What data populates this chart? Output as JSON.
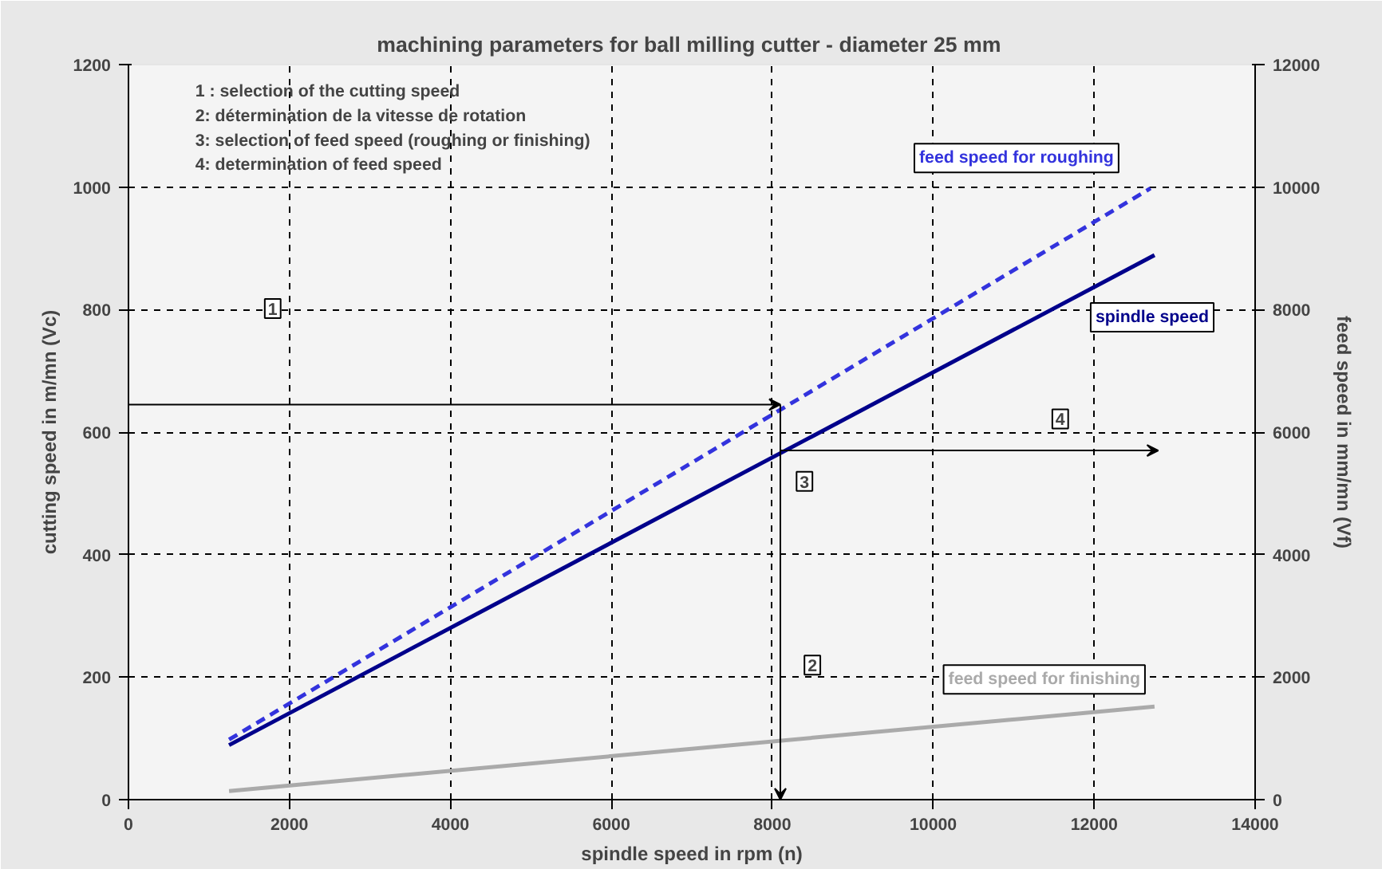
{
  "chart_data": {
    "type": "line",
    "title": "machining parameters for  ball milling cutter - diameter 25 mm",
    "xlabel": "spindle speed in rpm (n)",
    "ylabel": "cutting speed in m/mn (Vc)",
    "y2label": "feed speed in mm/mn (Vf)",
    "xlim": [
      0,
      14000
    ],
    "xticks": [
      0,
      2000,
      4000,
      6000,
      8000,
      10000,
      12000,
      14000
    ],
    "ylim": [
      0,
      1200
    ],
    "yticks": [
      0,
      200,
      400,
      600,
      800,
      1000,
      1200
    ],
    "y2lim": [
      0,
      12000
    ],
    "y2ticks": [
      0,
      2000,
      4000,
      6000,
      8000,
      10000,
      12000
    ],
    "grid": true,
    "legend": false,
    "series": [
      {
        "name": "spindle speed",
        "color": "#00008b",
        "x": [
          1250,
          12750
        ],
        "values": [
          89,
          889
        ],
        "line_style": "solid"
      },
      {
        "name": "feed speed for roughing",
        "color": "#3333dd",
        "x": [
          1250,
          12700
        ],
        "values": [
          980,
          9980
        ],
        "axis": "y2",
        "line_style": "dashed"
      },
      {
        "name": "feed speed for finishing",
        "color": "#aaaaaa",
        "x": [
          1250,
          12750
        ],
        "values": [
          140,
          1520
        ],
        "axis": "y2",
        "line_style": "solid"
      }
    ],
    "annotations": [
      "1 : selection of the cutting speed",
      "2: détermination de la vitesse de rotation",
      "3: selection of feed speed (roughing or finishing)",
      "4: determination of feed speed",
      "1",
      "2",
      "3",
      "4"
    ]
  }
}
